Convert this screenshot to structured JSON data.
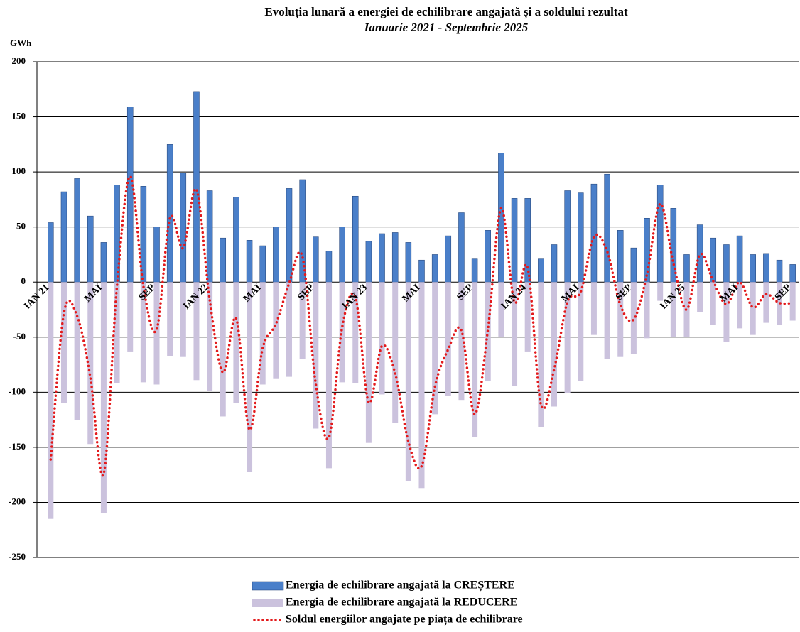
{
  "chart_data": {
    "type": "bar",
    "title": "Evoluția lunară a energiei de echilibrare angajată și a soldului rezultat",
    "subtitle": "Ianuarie 2021 - Septembrie 2025",
    "y_label": "GWh",
    "categories": [
      "IAN 21",
      null,
      null,
      null,
      "MAI",
      null,
      null,
      null,
      "SEP",
      null,
      null,
      null,
      "IAN 22",
      null,
      null,
      null,
      "MAI",
      null,
      null,
      null,
      "SEP",
      null,
      null,
      null,
      "IAN 23",
      null,
      null,
      null,
      "MAI",
      null,
      null,
      null,
      "SEP",
      null,
      null,
      null,
      "IAN 24",
      null,
      null,
      null,
      "MAI",
      null,
      null,
      null,
      "SEP",
      null,
      null,
      null,
      "IAN 25",
      null,
      null,
      null,
      "MAI",
      null,
      null,
      null,
      "SEP"
    ],
    "series": [
      {
        "name": "Energia de echilibrare angajată la CREȘTERE",
        "type": "bar",
        "color": "#4a7fc9",
        "values": [
          54,
          82,
          94,
          60,
          36,
          88,
          159,
          87,
          50,
          125,
          99,
          173,
          83,
          40,
          77,
          38,
          33,
          50,
          85,
          93,
          41,
          28,
          50,
          78,
          37,
          44,
          45,
          36,
          20,
          25,
          42,
          63,
          21,
          47,
          117,
          76,
          76,
          21,
          34,
          83,
          81,
          89,
          98,
          47,
          31,
          58,
          88,
          67,
          25,
          52,
          40,
          34,
          42,
          25,
          26,
          20,
          16
        ]
      },
      {
        "name": "Energia de echilibrare angajată la REDUCERE",
        "type": "bar",
        "color": "#cbc2dd",
        "values": [
          -215,
          -110,
          -125,
          -147,
          -210,
          -92,
          -63,
          -91,
          -93,
          -67,
          -68,
          -89,
          -99,
          -122,
          -110,
          -172,
          -93,
          -88,
          -86,
          -70,
          -133,
          -169,
          -91,
          -92,
          -146,
          -102,
          -128,
          -181,
          -187,
          -120,
          -103,
          -107,
          -141,
          -90,
          -50,
          -94,
          -63,
          -132,
          -113,
          -101,
          -90,
          -48,
          -70,
          -68,
          -65,
          -51,
          -17,
          -50,
          -50,
          -27,
          -39,
          -54,
          -42,
          -48,
          -37,
          -39,
          -35
        ]
      },
      {
        "name": "Soldul energiilor angajate pe piața de echilibrare",
        "type": "line",
        "color": "#e31a1c",
        "values": [
          -161,
          -28,
          -31,
          -87,
          -174,
          -4,
          96,
          -4,
          -43,
          58,
          31,
          84,
          -16,
          -82,
          -33,
          -134,
          -60,
          -38,
          -1,
          23,
          -92,
          -141,
          -41,
          -14,
          -109,
          -58,
          -83,
          -145,
          -167,
          -95,
          -61,
          -44,
          -120,
          -43,
          67,
          -18,
          13,
          -111,
          -79,
          -18,
          -9,
          41,
          28,
          -21,
          -34,
          7,
          71,
          17,
          -25,
          25,
          1,
          -20,
          0,
          -23,
          -11,
          -19,
          -19
        ]
      }
    ],
    "ylim": [
      -250,
      200
    ],
    "yticks": [
      -250,
      -200,
      -150,
      -100,
      -50,
      0,
      50,
      100,
      150,
      200
    ],
    "grid": true
  }
}
